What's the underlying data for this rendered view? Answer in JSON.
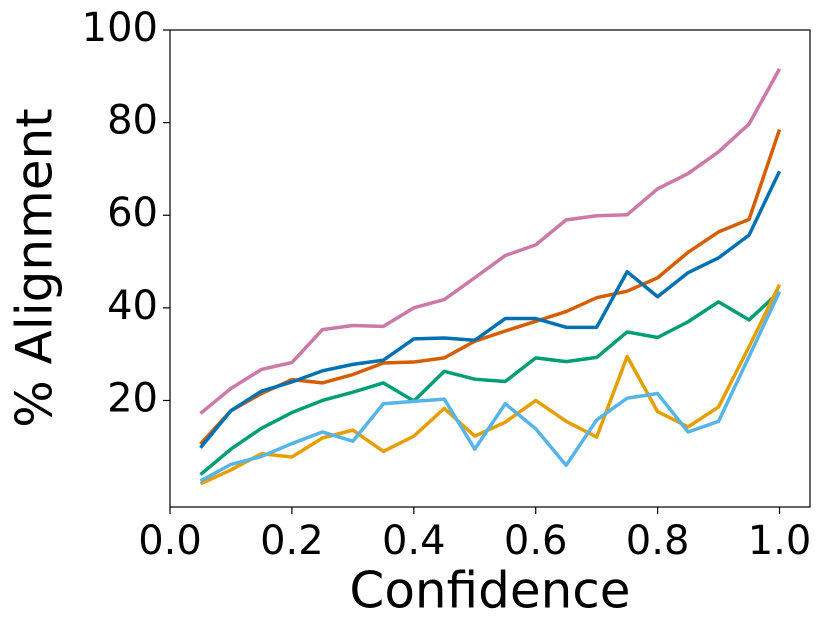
{
  "chart_data": {
    "type": "line",
    "x_label": "Confidence",
    "y_label": "% Alignment",
    "x": [
      0.05,
      0.1,
      0.15,
      0.2,
      0.25,
      0.3,
      0.35,
      0.4,
      0.45,
      0.5,
      0.55,
      0.6,
      0.65,
      0.7,
      0.75,
      0.8,
      0.85,
      0.9,
      0.95,
      1.0
    ],
    "series": [
      {
        "color": "#cc79a7",
        "values": [
          17.2,
          22.6,
          26.7,
          28.2,
          35.3,
          36.2,
          36,
          40,
          41.8,
          46.5,
          51.3,
          53.6,
          59,
          59.9,
          60.1,
          65.7,
          69,
          73.7,
          79.7,
          91.6
        ]
      },
      {
        "color": "#d55e00",
        "values": [
          10.6,
          17.8,
          21.5,
          24.5,
          23.8,
          25.6,
          28.1,
          28.3,
          29.2,
          32.8,
          35,
          37.1,
          39.2,
          42.2,
          43.6,
          46.5,
          52,
          56.4,
          59.1,
          78.5
        ]
      },
      {
        "color": "#0072b2",
        "values": [
          9.8,
          17.8,
          22,
          24,
          26.4,
          27.8,
          28.7,
          33.3,
          33.5,
          33,
          37.7,
          37.7,
          35.8,
          35.8,
          47.8,
          42.4,
          47.6,
          50.8,
          55.7,
          69.5
        ]
      },
      {
        "color": "#009e73",
        "values": [
          4,
          9.5,
          14,
          17.4,
          20,
          21.8,
          23.8,
          19.9,
          26.3,
          24.6,
          24.1,
          29.2,
          28.4,
          29.3,
          34.8,
          33.6,
          37,
          41.3,
          37.4,
          43.5
        ]
      },
      {
        "color": "#e69f00",
        "values": [
          2,
          5,
          8.5,
          7.8,
          11.9,
          13.6,
          9,
          12.3,
          18.3,
          12.3,
          15.3,
          20,
          15.5,
          12.1,
          29.5,
          17.6,
          14.3,
          18.6,
          31.6,
          45
        ]
      },
      {
        "color": "#56b4e9",
        "values": [
          2.6,
          6.2,
          7.9,
          10.7,
          13.2,
          11.2,
          19.3,
          19.8,
          20.3,
          9.5,
          19.3,
          13.9,
          6,
          15.8,
          20.5,
          21.5,
          13.2,
          15.5,
          29.5,
          43.5
        ]
      }
    ],
    "xlim": [
      0,
      1.05
    ],
    "xticks": [
      {
        "value": 0,
        "label": "0.0"
      },
      {
        "value": 0.2,
        "label": "0.2"
      },
      {
        "value": 0.4,
        "label": "0.4"
      },
      {
        "value": 0.6,
        "label": "0.6"
      },
      {
        "value": 0.8,
        "label": "0.8"
      },
      {
        "value": 1,
        "label": "1.0"
      }
    ],
    "ylim": [
      -3,
      100
    ],
    "yticks": [
      20,
      40,
      60,
      80,
      100
    ]
  }
}
